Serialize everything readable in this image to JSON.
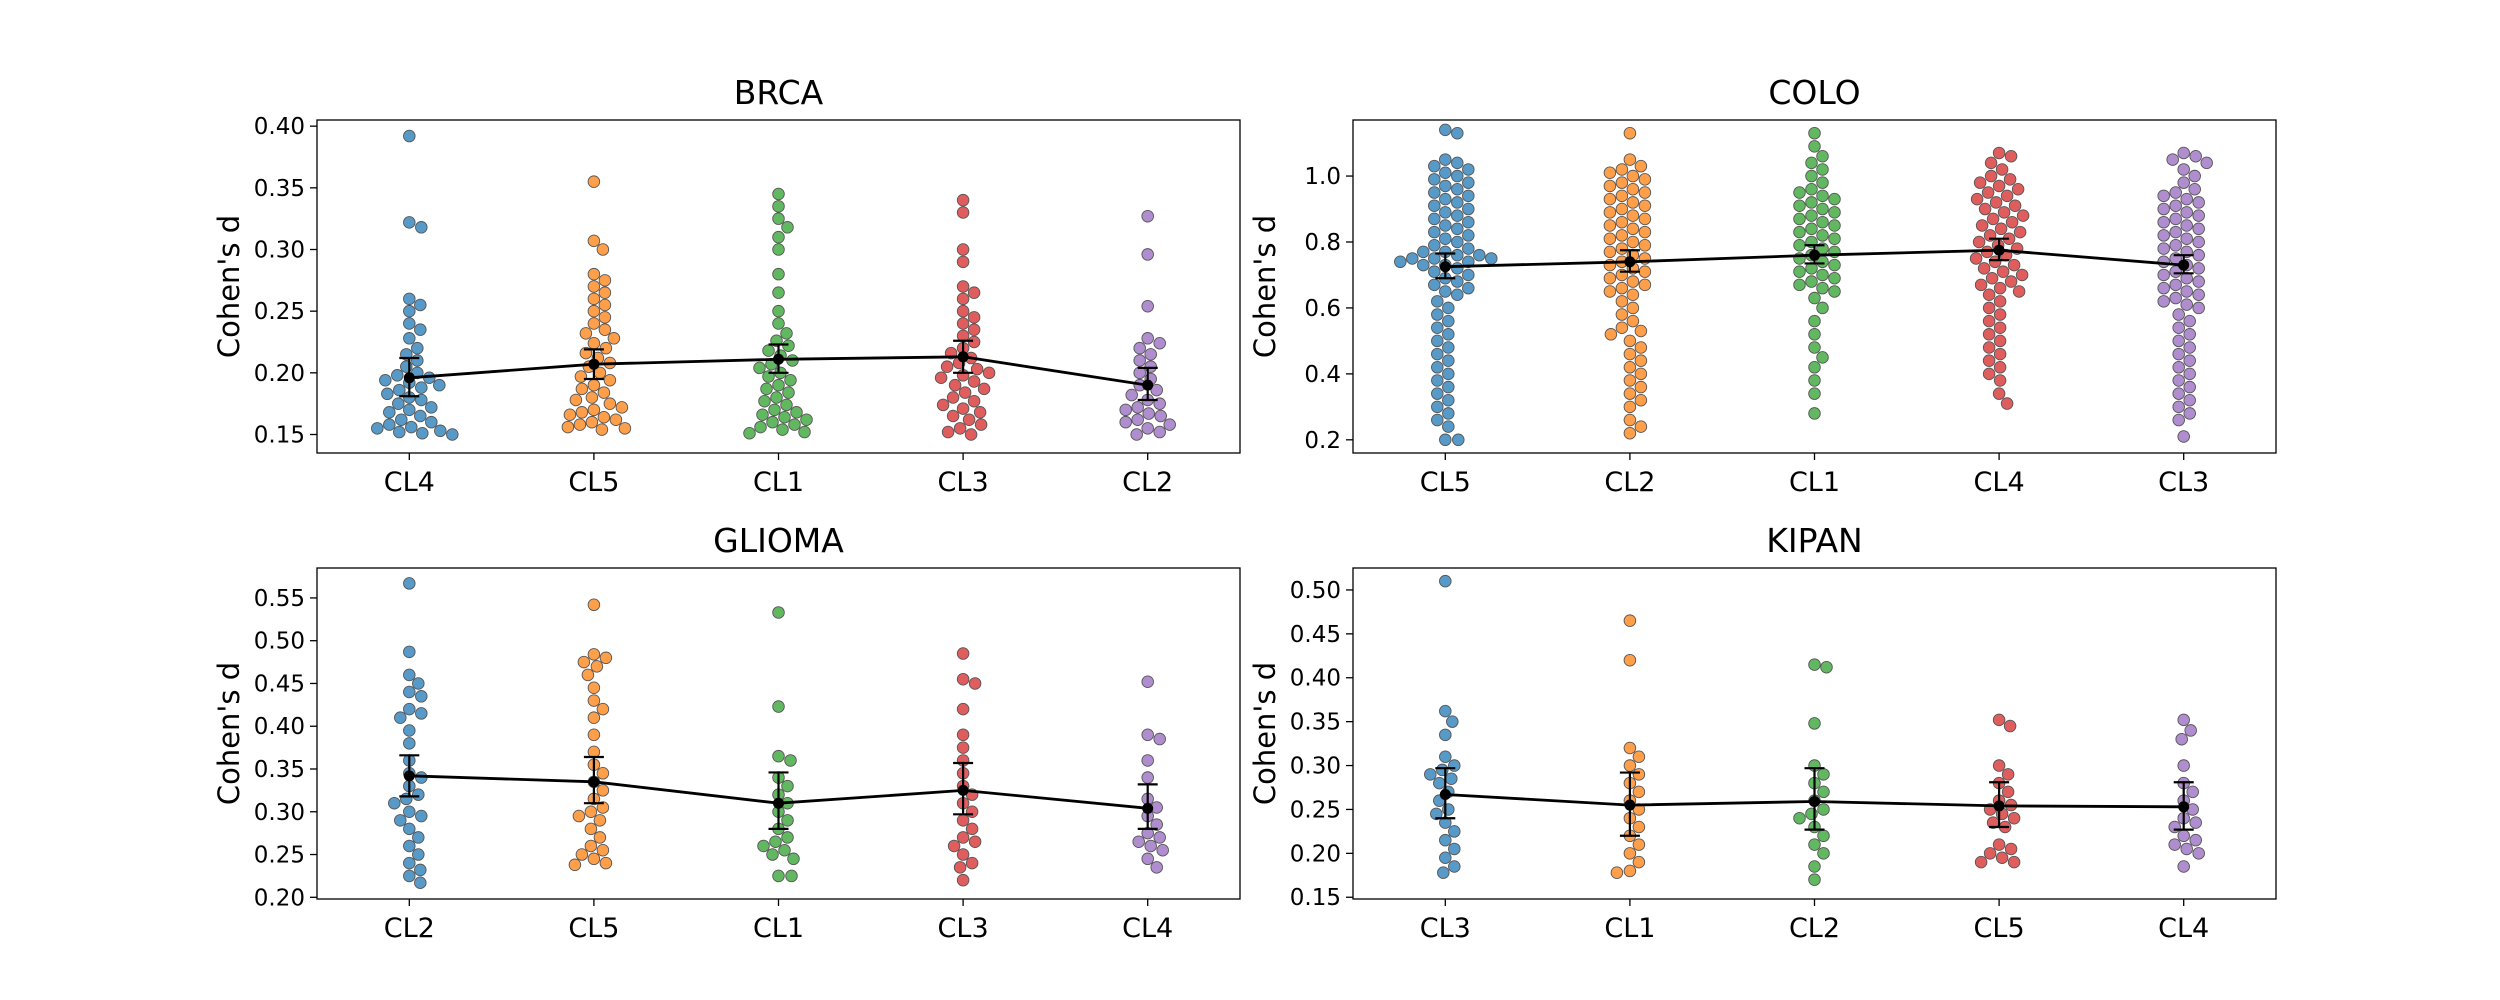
{
  "figure": {
    "ylabel": "Cohen's d"
  },
  "chart_data": [
    {
      "type": "scatter",
      "title": "BRCA",
      "ylabel": "Cohen's d",
      "ylim": [
        0.135,
        0.405
      ],
      "yticks": [
        0.15,
        0.2,
        0.25,
        0.3,
        0.35,
        0.4
      ],
      "categories": [
        "CL4",
        "CL5",
        "CL1",
        "CL3",
        "CL2"
      ],
      "colors": [
        "#1f77b4",
        "#ff7f0e",
        "#2ca02c",
        "#d62728",
        "#9467bd"
      ],
      "series": [
        {
          "category": "CL4",
          "values": [
            0.392,
            0.322,
            0.318,
            0.26,
            0.255,
            0.25,
            0.24,
            0.235,
            0.228,
            0.22,
            0.215,
            0.21,
            0.205,
            0.2,
            0.198,
            0.196,
            0.194,
            0.192,
            0.19,
            0.188,
            0.186,
            0.183,
            0.18,
            0.178,
            0.175,
            0.172,
            0.17,
            0.168,
            0.165,
            0.162,
            0.16,
            0.158,
            0.156,
            0.155,
            0.153,
            0.152,
            0.151,
            0.15
          ],
          "mean": 0.196,
          "ci": [
            0.181,
            0.212
          ]
        },
        {
          "category": "CL5",
          "values": [
            0.355,
            0.307,
            0.3,
            0.28,
            0.275,
            0.27,
            0.265,
            0.26,
            0.255,
            0.25,
            0.245,
            0.24,
            0.235,
            0.232,
            0.228,
            0.224,
            0.22,
            0.216,
            0.212,
            0.208,
            0.205,
            0.2,
            0.197,
            0.194,
            0.19,
            0.187,
            0.184,
            0.18,
            0.178,
            0.175,
            0.172,
            0.17,
            0.168,
            0.166,
            0.164,
            0.162,
            0.16,
            0.158,
            0.156,
            0.155,
            0.154
          ],
          "mean": 0.207,
          "ci": [
            0.195,
            0.219
          ]
        },
        {
          "category": "CL1",
          "values": [
            0.345,
            0.335,
            0.325,
            0.318,
            0.31,
            0.3,
            0.28,
            0.265,
            0.25,
            0.24,
            0.232,
            0.226,
            0.222,
            0.218,
            0.214,
            0.21,
            0.207,
            0.204,
            0.2,
            0.197,
            0.194,
            0.19,
            0.187,
            0.184,
            0.18,
            0.177,
            0.174,
            0.17,
            0.168,
            0.166,
            0.164,
            0.162,
            0.16,
            0.158,
            0.156,
            0.154,
            0.152,
            0.151
          ],
          "mean": 0.211,
          "ci": [
            0.2,
            0.223
          ]
        },
        {
          "category": "CL3",
          "values": [
            0.34,
            0.33,
            0.3,
            0.29,
            0.27,
            0.265,
            0.26,
            0.25,
            0.245,
            0.24,
            0.235,
            0.23,
            0.225,
            0.22,
            0.216,
            0.212,
            0.208,
            0.205,
            0.203,
            0.2,
            0.198,
            0.196,
            0.193,
            0.19,
            0.187,
            0.184,
            0.18,
            0.177,
            0.174,
            0.171,
            0.168,
            0.165,
            0.162,
            0.158,
            0.155,
            0.152,
            0.15
          ],
          "mean": 0.213,
          "ci": [
            0.2,
            0.226
          ]
        },
        {
          "category": "CL2",
          "values": [
            0.327,
            0.296,
            0.254,
            0.228,
            0.224,
            0.22,
            0.215,
            0.21,
            0.205,
            0.2,
            0.195,
            0.19,
            0.186,
            0.182,
            0.178,
            0.175,
            0.172,
            0.17,
            0.167,
            0.165,
            0.162,
            0.16,
            0.158,
            0.155,
            0.152,
            0.15
          ],
          "mean": 0.19,
          "ci": [
            0.178,
            0.204
          ]
        }
      ]
    },
    {
      "type": "scatter",
      "title": "COLO",
      "ylabel": "Cohen's d",
      "ylim": [
        0.16,
        1.17
      ],
      "yticks": [
        0.2,
        0.4,
        0.6,
        0.8,
        1.0
      ],
      "categories": [
        "CL5",
        "CL2",
        "CL1",
        "CL4",
        "CL3"
      ],
      "colors": [
        "#1f77b4",
        "#ff7f0e",
        "#2ca02c",
        "#d62728",
        "#9467bd"
      ],
      "series": [
        {
          "category": "CL5",
          "values": [
            1.14,
            1.13,
            1.05,
            1.04,
            1.03,
            1.02,
            1.01,
            1.0,
            0.99,
            0.98,
            0.97,
            0.96,
            0.95,
            0.94,
            0.93,
            0.92,
            0.91,
            0.9,
            0.89,
            0.88,
            0.87,
            0.86,
            0.85,
            0.84,
            0.83,
            0.82,
            0.81,
            0.8,
            0.79,
            0.78,
            0.77,
            0.77,
            0.76,
            0.76,
            0.75,
            0.75,
            0.75,
            0.74,
            0.74,
            0.73,
            0.73,
            0.72,
            0.71,
            0.7,
            0.69,
            0.68,
            0.67,
            0.66,
            0.65,
            0.64,
            0.62,
            0.6,
            0.58,
            0.56,
            0.54,
            0.52,
            0.5,
            0.48,
            0.46,
            0.44,
            0.42,
            0.4,
            0.38,
            0.36,
            0.34,
            0.32,
            0.3,
            0.28,
            0.26,
            0.24,
            0.2,
            0.2
          ],
          "mean": 0.725,
          "ci": [
            0.69,
            0.765
          ]
        },
        {
          "category": "CL2",
          "values": [
            1.13,
            1.05,
            1.03,
            1.02,
            1.01,
            1.0,
            0.99,
            0.98,
            0.97,
            0.96,
            0.95,
            0.94,
            0.93,
            0.92,
            0.91,
            0.9,
            0.89,
            0.88,
            0.87,
            0.86,
            0.85,
            0.84,
            0.83,
            0.82,
            0.81,
            0.8,
            0.79,
            0.78,
            0.77,
            0.76,
            0.75,
            0.74,
            0.73,
            0.72,
            0.71,
            0.7,
            0.69,
            0.68,
            0.67,
            0.66,
            0.65,
            0.64,
            0.62,
            0.6,
            0.58,
            0.56,
            0.54,
            0.53,
            0.52,
            0.5,
            0.48,
            0.46,
            0.44,
            0.42,
            0.4,
            0.38,
            0.36,
            0.34,
            0.32,
            0.3,
            0.26,
            0.24,
            0.22
          ],
          "mean": 0.74,
          "ci": [
            0.71,
            0.775
          ]
        },
        {
          "category": "CL1",
          "values": [
            1.13,
            1.09,
            1.06,
            1.04,
            1.02,
            1.0,
            0.98,
            0.96,
            0.95,
            0.94,
            0.93,
            0.92,
            0.91,
            0.9,
            0.89,
            0.88,
            0.87,
            0.86,
            0.85,
            0.84,
            0.83,
            0.82,
            0.81,
            0.8,
            0.79,
            0.78,
            0.77,
            0.76,
            0.75,
            0.74,
            0.73,
            0.72,
            0.71,
            0.7,
            0.69,
            0.68,
            0.67,
            0.66,
            0.65,
            0.63,
            0.6,
            0.56,
            0.52,
            0.48,
            0.45,
            0.42,
            0.38,
            0.34,
            0.28
          ],
          "mean": 0.76,
          "ci": [
            0.735,
            0.79
          ]
        },
        {
          "category": "CL4",
          "values": [
            1.07,
            1.06,
            1.04,
            1.02,
            1.0,
            0.99,
            0.98,
            0.97,
            0.96,
            0.95,
            0.94,
            0.93,
            0.92,
            0.91,
            0.9,
            0.89,
            0.88,
            0.87,
            0.86,
            0.85,
            0.84,
            0.83,
            0.82,
            0.81,
            0.8,
            0.79,
            0.78,
            0.77,
            0.76,
            0.75,
            0.74,
            0.73,
            0.72,
            0.71,
            0.7,
            0.69,
            0.68,
            0.67,
            0.66,
            0.65,
            0.64,
            0.62,
            0.6,
            0.58,
            0.56,
            0.54,
            0.52,
            0.5,
            0.48,
            0.46,
            0.44,
            0.42,
            0.4,
            0.38,
            0.34,
            0.31
          ],
          "mean": 0.775,
          "ci": [
            0.745,
            0.81
          ]
        },
        {
          "category": "CL3",
          "values": [
            1.07,
            1.06,
            1.05,
            1.04,
            1.02,
            1.0,
            0.98,
            0.96,
            0.95,
            0.94,
            0.93,
            0.92,
            0.91,
            0.9,
            0.89,
            0.88,
            0.87,
            0.86,
            0.85,
            0.84,
            0.83,
            0.82,
            0.81,
            0.8,
            0.79,
            0.78,
            0.77,
            0.76,
            0.75,
            0.74,
            0.73,
            0.72,
            0.71,
            0.7,
            0.69,
            0.68,
            0.67,
            0.66,
            0.65,
            0.64,
            0.63,
            0.62,
            0.61,
            0.6,
            0.58,
            0.56,
            0.54,
            0.52,
            0.5,
            0.48,
            0.46,
            0.44,
            0.42,
            0.4,
            0.38,
            0.36,
            0.34,
            0.32,
            0.3,
            0.28,
            0.26,
            0.21
          ],
          "mean": 0.73,
          "ci": [
            0.705,
            0.76
          ]
        }
      ]
    },
    {
      "type": "scatter",
      "title": "GLIOMA",
      "ylabel": "Cohen's d",
      "ylim": [
        0.198,
        0.585
      ],
      "yticks": [
        0.2,
        0.25,
        0.3,
        0.35,
        0.4,
        0.45,
        0.5,
        0.55
      ],
      "categories": [
        "CL2",
        "CL5",
        "CL1",
        "CL3",
        "CL4"
      ],
      "colors": [
        "#1f77b4",
        "#ff7f0e",
        "#2ca02c",
        "#d62728",
        "#9467bd"
      ],
      "series": [
        {
          "category": "CL2",
          "values": [
            0.567,
            0.487,
            0.46,
            0.45,
            0.44,
            0.435,
            0.42,
            0.415,
            0.41,
            0.395,
            0.38,
            0.36,
            0.345,
            0.34,
            0.33,
            0.32,
            0.315,
            0.31,
            0.3,
            0.295,
            0.29,
            0.28,
            0.27,
            0.26,
            0.25,
            0.24,
            0.232,
            0.225,
            0.217
          ],
          "mean": 0.342,
          "ci": [
            0.318,
            0.366
          ]
        },
        {
          "category": "CL5",
          "values": [
            0.542,
            0.484,
            0.48,
            0.475,
            0.47,
            0.46,
            0.445,
            0.43,
            0.42,
            0.41,
            0.39,
            0.37,
            0.355,
            0.345,
            0.335,
            0.325,
            0.315,
            0.305,
            0.3,
            0.295,
            0.29,
            0.28,
            0.27,
            0.26,
            0.255,
            0.25,
            0.245,
            0.24,
            0.238
          ],
          "mean": 0.335,
          "ci": [
            0.31,
            0.364
          ]
        },
        {
          "category": "CL1",
          "values": [
            0.533,
            0.423,
            0.365,
            0.36,
            0.34,
            0.33,
            0.32,
            0.31,
            0.3,
            0.29,
            0.28,
            0.27,
            0.265,
            0.26,
            0.255,
            0.25,
            0.245,
            0.225,
            0.225
          ],
          "mean": 0.31,
          "ci": [
            0.28,
            0.346
          ]
        },
        {
          "category": "CL3",
          "values": [
            0.485,
            0.455,
            0.45,
            0.42,
            0.39,
            0.375,
            0.36,
            0.345,
            0.33,
            0.32,
            0.31,
            0.3,
            0.29,
            0.28,
            0.27,
            0.265,
            0.26,
            0.25,
            0.24,
            0.235,
            0.22
          ],
          "mean": 0.325,
          "ci": [
            0.297,
            0.357
          ]
        },
        {
          "category": "CL4",
          "values": [
            0.452,
            0.39,
            0.385,
            0.36,
            0.34,
            0.315,
            0.305,
            0.295,
            0.285,
            0.275,
            0.27,
            0.265,
            0.26,
            0.255,
            0.245,
            0.235
          ],
          "mean": 0.304,
          "ci": [
            0.28,
            0.332
          ]
        }
      ]
    },
    {
      "type": "scatter",
      "title": "KIPAN",
      "ylabel": "Cohen's d",
      "ylim": [
        0.148,
        0.525
      ],
      "yticks": [
        0.15,
        0.2,
        0.25,
        0.3,
        0.35,
        0.4,
        0.45,
        0.5
      ],
      "categories": [
        "CL3",
        "CL1",
        "CL2",
        "CL5",
        "CL4"
      ],
      "colors": [
        "#1f77b4",
        "#ff7f0e",
        "#2ca02c",
        "#d62728",
        "#9467bd"
      ],
      "series": [
        {
          "category": "CL3",
          "values": [
            0.51,
            0.362,
            0.35,
            0.335,
            0.31,
            0.3,
            0.295,
            0.29,
            0.285,
            0.28,
            0.27,
            0.26,
            0.25,
            0.245,
            0.235,
            0.225,
            0.215,
            0.205,
            0.195,
            0.185,
            0.178
          ],
          "mean": 0.267,
          "ci": [
            0.24,
            0.297
          ]
        },
        {
          "category": "CL1",
          "values": [
            0.465,
            0.42,
            0.32,
            0.31,
            0.3,
            0.29,
            0.28,
            0.27,
            0.26,
            0.25,
            0.24,
            0.23,
            0.22,
            0.21,
            0.2,
            0.19,
            0.18,
            0.178
          ],
          "mean": 0.255,
          "ci": [
            0.22,
            0.292
          ]
        },
        {
          "category": "CL2",
          "values": [
            0.415,
            0.412,
            0.348,
            0.3,
            0.29,
            0.28,
            0.27,
            0.26,
            0.25,
            0.245,
            0.24,
            0.23,
            0.22,
            0.21,
            0.2,
            0.185,
            0.17
          ],
          "mean": 0.259,
          "ci": [
            0.227,
            0.297
          ]
        },
        {
          "category": "CL5",
          "values": [
            0.352,
            0.345,
            0.3,
            0.29,
            0.28,
            0.27,
            0.26,
            0.255,
            0.25,
            0.245,
            0.24,
            0.235,
            0.23,
            0.21,
            0.205,
            0.2,
            0.195,
            0.19,
            0.19
          ],
          "mean": 0.254,
          "ci": [
            0.23,
            0.281
          ]
        },
        {
          "category": "CL4",
          "values": [
            0.352,
            0.34,
            0.33,
            0.3,
            0.28,
            0.27,
            0.26,
            0.25,
            0.24,
            0.235,
            0.23,
            0.22,
            0.215,
            0.21,
            0.205,
            0.2,
            0.185
          ],
          "mean": 0.253,
          "ci": [
            0.227,
            0.281
          ]
        }
      ]
    }
  ]
}
